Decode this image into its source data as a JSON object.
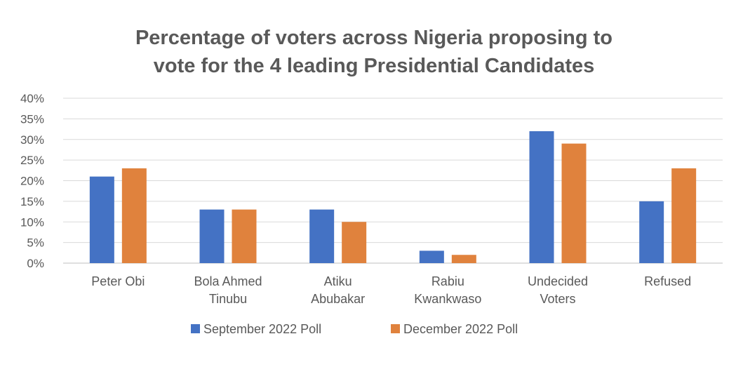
{
  "chart_data": {
    "type": "bar",
    "title_lines": [
      "Percentage of voters across Nigeria proposing to",
      "vote for the 4 leading Presidential Candidates"
    ],
    "categories": [
      [
        "Peter Obi"
      ],
      [
        "Bola Ahmed",
        "Tinubu"
      ],
      [
        "Atiku",
        "Abubakar"
      ],
      [
        "Rabiu",
        "Kwankwaso"
      ],
      [
        "Undecided",
        "Voters"
      ],
      [
        "Refused"
      ]
    ],
    "series": [
      {
        "name": "September 2022 Poll",
        "color": "#4472C4",
        "values": [
          21,
          13,
          13,
          3,
          32,
          15
        ]
      },
      {
        "name": "December 2022 Poll",
        "color": "#E0823D",
        "values": [
          23,
          13,
          10,
          2,
          29,
          23
        ]
      }
    ],
    "y_ticks": [
      "0%",
      "5%",
      "10%",
      "15%",
      "20%",
      "25%",
      "30%",
      "35%",
      "40%"
    ],
    "ylim": [
      0,
      40
    ],
    "grid": true,
    "legend_position": "bottom"
  }
}
